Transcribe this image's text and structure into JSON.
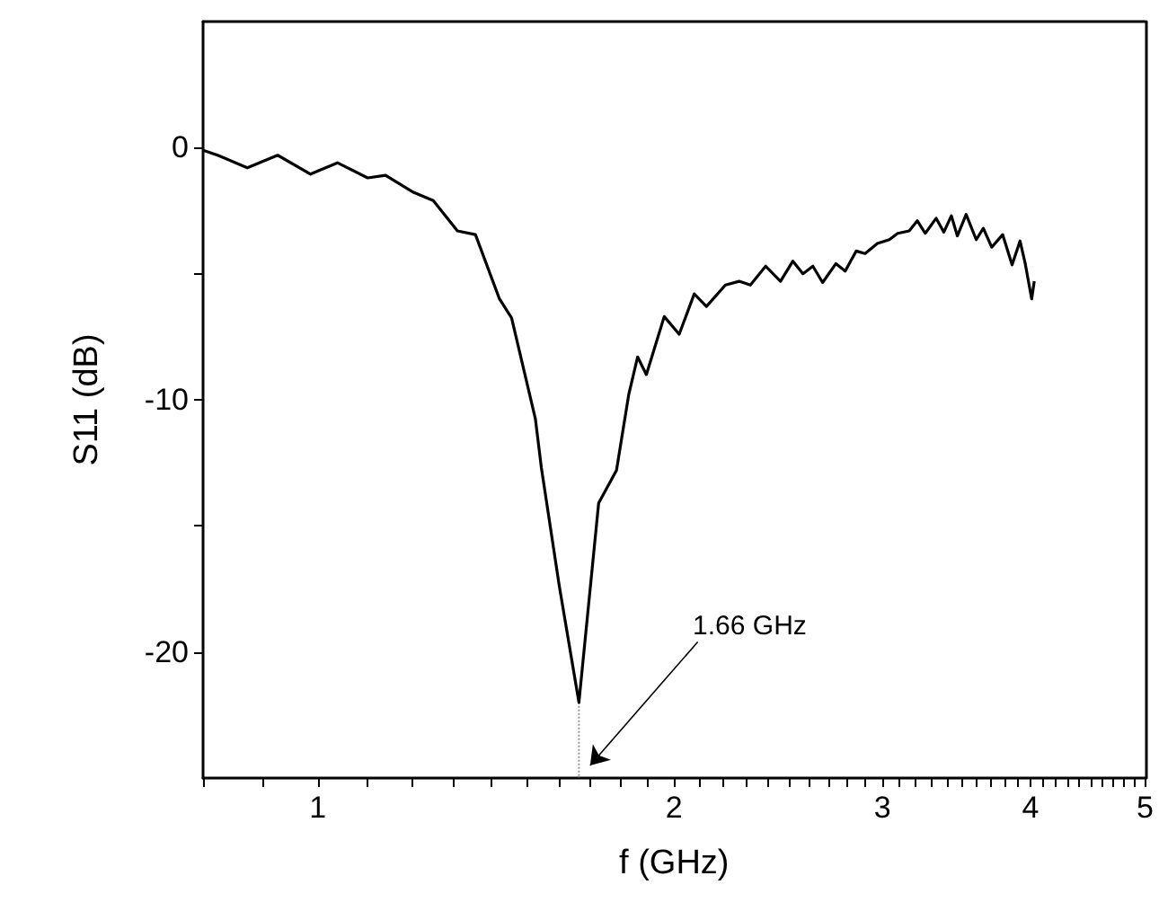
{
  "chart_data": {
    "type": "line",
    "xlabel": "f (GHz)",
    "ylabel": "S11 (dB)",
    "log": "x",
    "xlim": [
      0.8,
      5
    ],
    "ylim": [
      -25,
      5
    ],
    "xticks": [
      {
        "value": 0.8,
        "label": null
      },
      {
        "value": 0.9,
        "label": null
      },
      1,
      {
        "value": 1.1,
        "label": null
      },
      {
        "value": 1.2,
        "label": null
      },
      {
        "value": 1.3,
        "label": null
      },
      {
        "value": 1.4,
        "label": null
      },
      {
        "value": 1.5,
        "label": null
      },
      {
        "value": 1.6,
        "label": null
      },
      {
        "value": 1.7,
        "label": null
      },
      {
        "value": 1.8,
        "label": null
      },
      {
        "value": 1.9,
        "label": null
      },
      2,
      {
        "value": 2.1,
        "label": null
      },
      {
        "value": 2.2,
        "label": null
      },
      {
        "value": 2.3,
        "label": null
      },
      {
        "value": 2.4,
        "label": null
      },
      {
        "value": 2.5,
        "label": null
      },
      {
        "value": 2.6,
        "label": null
      },
      {
        "value": 2.7,
        "label": null
      },
      {
        "value": 2.8,
        "label": null
      },
      {
        "value": 2.9,
        "label": null
      },
      3,
      {
        "value": 3.1,
        "label": null
      },
      {
        "value": 3.2,
        "label": null
      },
      {
        "value": 3.3,
        "label": null
      },
      {
        "value": 3.4,
        "label": null
      },
      {
        "value": 3.5,
        "label": null
      },
      {
        "value": 3.6,
        "label": null
      },
      {
        "value": 3.7,
        "label": null
      },
      {
        "value": 3.8,
        "label": null
      },
      {
        "value": 3.9,
        "label": null
      },
      4,
      {
        "value": 4.1,
        "label": null
      },
      {
        "value": 4.2,
        "label": null
      },
      {
        "value": 4.3,
        "label": null
      },
      {
        "value": 4.4,
        "label": null
      },
      {
        "value": 4.5,
        "label": null
      },
      {
        "value": 4.6,
        "label": null
      },
      {
        "value": 4.7,
        "label": null
      },
      {
        "value": 4.8,
        "label": null
      },
      {
        "value": 4.9,
        "label": null
      },
      5
    ],
    "yticks": [
      -20,
      {
        "value": -15,
        "label": null
      },
      -10,
      {
        "value": -5,
        "label": null
      },
      0
    ],
    "marker": "none",
    "line_style": "solid",
    "annotations": [
      "1.66 GHz"
    ],
    "series": [
      {
        "type": "line",
        "color": "#999999",
        "line_style": "dotted",
        "x": [
          1.662,
          1.662
        ],
        "values": [
          -22.0,
          -25
        ]
      },
      {
        "color": "#000000",
        "x": [
          0.8,
          0.823,
          0.872,
          0.925,
          0.986,
          1.039,
          1.102,
          1.141,
          1.202,
          1.252,
          1.312,
          1.359,
          1.424,
          1.458,
          1.527,
          1.545,
          1.6,
          1.662,
          1.727,
          1.788,
          1.831,
          1.863,
          1.895,
          1.962,
          2.02,
          2.08,
          2.13,
          2.21,
          2.27,
          2.32,
          2.39,
          2.46,
          2.52,
          2.57,
          2.62,
          2.67,
          2.74,
          2.79,
          2.85,
          2.9,
          2.97,
          3.04,
          3.09,
          3.16,
          3.21,
          3.26,
          3.33,
          3.38,
          3.43,
          3.47,
          3.53,
          3.6,
          3.65,
          3.71,
          3.79,
          3.86,
          3.92,
          3.96,
          4.01,
          4.03
        ],
        "values": [
          -0.1,
          -0.3,
          -0.8,
          -0.3,
          -1.05,
          -0.6,
          -1.2,
          -1.1,
          -1.75,
          -2.1,
          -3.3,
          -3.45,
          -6.0,
          -6.75,
          -10.75,
          -12.7,
          -17.4,
          -22.0,
          -14.1,
          -12.8,
          -9.8,
          -8.3,
          -9.0,
          -6.7,
          -7.4,
          -5.8,
          -6.3,
          -5.45,
          -5.3,
          -5.45,
          -4.7,
          -5.3,
          -4.5,
          -5.0,
          -4.7,
          -5.35,
          -4.6,
          -4.9,
          -4.1,
          -4.2,
          -3.8,
          -3.65,
          -3.4,
          -3.3,
          -2.9,
          -3.4,
          -2.8,
          -3.35,
          -2.7,
          -3.5,
          -2.65,
          -3.65,
          -3.2,
          -3.95,
          -3.45,
          -4.65,
          -3.7,
          -4.6,
          -6.0,
          -5.3
        ]
      }
    ]
  }
}
